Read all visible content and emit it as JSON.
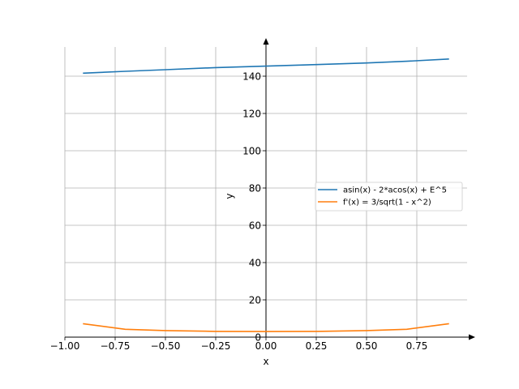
{
  "chart_data": {
    "type": "line",
    "xlabel": "x",
    "ylabel": "y",
    "xlim": [
      -1.0,
      1.0
    ],
    "ylim": [
      0,
      155
    ],
    "grid": true,
    "legend_position": "center-right",
    "x_ticks": [
      -1.0,
      -0.75,
      -0.5,
      -0.25,
      0.0,
      0.25,
      0.5,
      0.75
    ],
    "x_tick_labels": [
      "−1.00",
      "−0.75",
      "−0.50",
      "−0.25",
      "0.00",
      "0.25",
      "0.50",
      "0.75"
    ],
    "y_ticks": [
      0,
      20,
      40,
      60,
      80,
      100,
      120,
      140
    ],
    "y_tick_labels": [
      "0",
      "20",
      "40",
      "60",
      "80",
      "100",
      "120",
      "140"
    ],
    "series": [
      {
        "name": "asin(x) - 2*acos(x) + E^5",
        "color": "#1f77b4",
        "x": [
          -0.91,
          -0.7,
          -0.5,
          -0.25,
          0.0,
          0.25,
          0.5,
          0.7,
          0.91
        ],
        "y": [
          141.6,
          142.6,
          143.5,
          144.6,
          145.4,
          146.2,
          147.1,
          148.0,
          149.2
        ]
      },
      {
        "name": "f'(x) = 3/sqrt(1 - x^2)",
        "color": "#ff7f0e",
        "x": [
          -0.91,
          -0.7,
          -0.5,
          -0.25,
          0.0,
          0.25,
          0.5,
          0.7,
          0.91
        ],
        "y": [
          7.2,
          4.2,
          3.5,
          3.1,
          3.0,
          3.1,
          3.5,
          4.2,
          7.2
        ]
      }
    ]
  }
}
